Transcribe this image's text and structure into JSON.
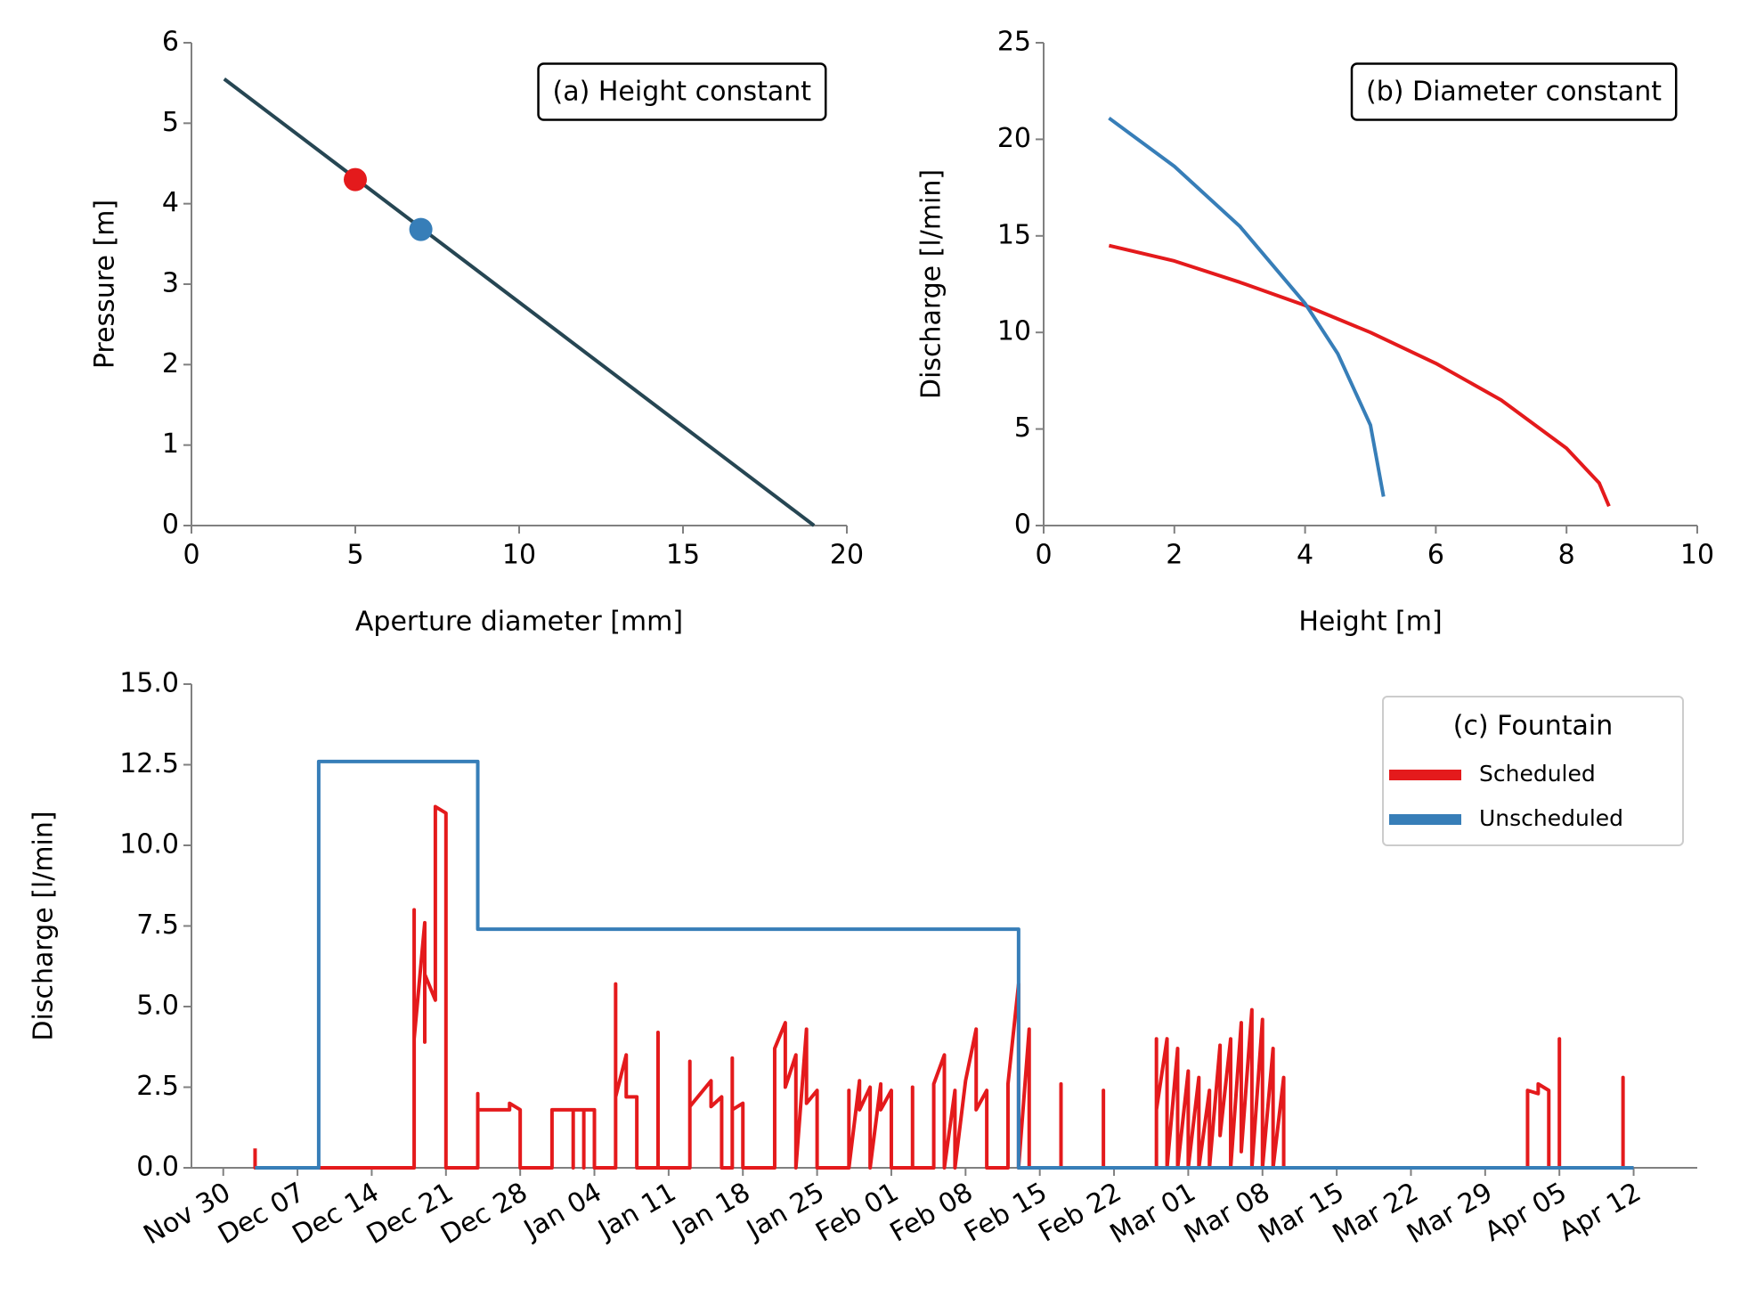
{
  "chart_data": [
    {
      "type": "line",
      "annotation": "(a) Height constant",
      "annotation_loc": "upper right",
      "xlabel": "Aperture diameter [mm]",
      "ylabel": "Pressure [m]",
      "xlim": [
        0,
        20
      ],
      "xticks": [
        0,
        5,
        10,
        15,
        20
      ],
      "ylim": [
        0,
        6
      ],
      "yticks": [
        0,
        1,
        2,
        3,
        4,
        5,
        6
      ],
      "series": [
        {
          "color": "#264653",
          "x": [
            1,
            19
          ],
          "values": [
            5.55,
            0
          ]
        },
        {
          "color": "#e41a1c",
          "marker": true,
          "x": [
            5
          ],
          "values": [
            4.3
          ]
        },
        {
          "color": "#377eb8",
          "marker": true,
          "x": [
            7
          ],
          "values": [
            3.68
          ]
        }
      ]
    },
    {
      "type": "line",
      "annotation": "(b) Diameter constant",
      "annotation_loc": "upper right",
      "xlabel": "Height [m]",
      "ylabel": "Discharge [l/min]",
      "xlim": [
        0,
        10
      ],
      "xticks": [
        0,
        2,
        4,
        6,
        8,
        10
      ],
      "ylim": [
        0,
        25
      ],
      "yticks": [
        0,
        5,
        10,
        15,
        20,
        25
      ],
      "series": [
        {
          "color": "#e41a1c",
          "x": [
            1,
            2,
            3,
            4,
            5,
            6,
            7,
            8,
            8.5,
            8.65
          ],
          "values": [
            14.5,
            13.7,
            12.6,
            11.4,
            10.0,
            8.4,
            6.5,
            4.0,
            2.2,
            1.0
          ]
        },
        {
          "color": "#377eb8",
          "x": [
            1,
            2,
            3,
            4,
            4.5,
            5,
            5.2
          ],
          "values": [
            21.1,
            18.6,
            15.5,
            11.5,
            8.9,
            5.2,
            1.5
          ]
        }
      ]
    },
    {
      "type": "line",
      "ylabel": "Discharge [l/min]",
      "xlim": [
        "Nov 27",
        "Apr 18"
      ],
      "xticks": [
        "Nov 30",
        "Dec 07",
        "Dec 14",
        "Dec 21",
        "Dec 28",
        "Jan 04",
        "Jan 11",
        "Jan 18",
        "Jan 25",
        "Feb 01",
        "Feb 08",
        "Feb 15",
        "Feb 22",
        "Mar 01",
        "Mar 08",
        "Mar 15",
        "Mar 22",
        "Mar 29",
        "Apr 05",
        "Apr 12"
      ],
      "xtick_rotation": 30,
      "ylim": [
        0,
        15
      ],
      "yticks": [
        {
          "value": 0,
          "label": "0.0"
        },
        2.5,
        {
          "value": 5,
          "label": "5.0"
        },
        7.5,
        {
          "value": 10,
          "label": "10.0"
        },
        12.5,
        {
          "value": 15,
          "label": "15.0"
        }
      ],
      "legend": {
        "title": "(c) Fountain",
        "loc": "upper right"
      },
      "series": [
        {
          "name": "Scheduled",
          "color": "#e41a1c",
          "x": [
            "Dec 03",
            "Dec 03",
            "Dec 18",
            "Dec 18",
            "Dec 18",
            "Dec 19",
            "Dec 19",
            "Dec 19",
            "Dec 20",
            "Dec 20",
            "Dec 20",
            "Dec 21",
            "Dec 21",
            "Dec 24",
            "Dec 24",
            "Dec 24",
            "Dec 27",
            "Dec 27",
            "Dec 28",
            "Dec 28",
            "Dec 31",
            "Dec 31",
            "Jan 02",
            "Jan 02",
            "Jan 02",
            "Jan 03",
            "Jan 03",
            "Jan 03",
            "Jan 04",
            "Jan 04",
            "Jan 06",
            "Jan 06",
            "Jan 06",
            "Jan 07",
            "Jan 07",
            "Jan 08",
            "Jan 08",
            "Jan 10",
            "Jan 10",
            "Jan 10",
            "Jan 13",
            "Jan 13",
            "Jan 13",
            "Jan 15",
            "Jan 15",
            "Jan 16",
            "Jan 16",
            "Jan 17",
            "Jan 17",
            "Jan 17",
            "Jan 18",
            "Jan 18",
            "Jan 21",
            "Jan 21",
            "Jan 22",
            "Jan 22",
            "Jan 23",
            "Jan 23",
            "Jan 24",
            "Jan 24",
            "Jan 25",
            "Jan 25",
            "Jan 28",
            "Jan 28",
            "Jan 28",
            "Jan 29",
            "Jan 29",
            "Jan 30",
            "Jan 30",
            "Jan 31",
            "Jan 31",
            "Feb 01",
            "Feb 01",
            "Feb 03",
            "Feb 03",
            "Feb 03",
            "Feb 05",
            "Feb 05",
            "Feb 06",
            "Feb 06",
            "Feb 07",
            "Feb 07",
            "Feb 08",
            "Feb 09",
            "Feb 09",
            "Feb 10",
            "Feb 10",
            "Feb 12",
            "Feb 12",
            "Feb 13",
            "Feb 13",
            "Feb 14",
            "Feb 14",
            "Feb 17",
            "Feb 17",
            "Feb 17",
            "Feb 21",
            "Feb 21",
            "Feb 21",
            "Feb 26",
            "Feb 26",
            "Feb 26",
            "Feb 27",
            "Feb 27",
            "Feb 28",
            "Feb 28",
            "Mar 01",
            "Mar 01",
            "Mar 02",
            "Mar 02",
            "Mar 03",
            "Mar 03",
            "Mar 04",
            "Mar 04",
            "Mar 05",
            "Mar 05",
            "Mar 06",
            "Mar 06",
            "Mar 07",
            "Mar 07",
            "Mar 08",
            "Mar 08",
            "Mar 09",
            "Mar 09",
            "Mar 10",
            "Mar 10",
            "Apr 02",
            "Apr 02",
            "Apr 03",
            "Apr 03",
            "Apr 04",
            "Apr 04",
            "Apr 05",
            "Apr 05",
            "Apr 05",
            "Apr 11",
            "Apr 11",
            "Apr 11",
            "Apr 12"
          ],
          "values": [
            0.6,
            0,
            0,
            8.0,
            4.0,
            7.6,
            3.9,
            6.0,
            5.2,
            8.8,
            11.2,
            11.0,
            0,
            0,
            2.3,
            1.8,
            1.8,
            2.0,
            1.8,
            0,
            0,
            1.8,
            1.8,
            0,
            1.8,
            1.8,
            0,
            1.8,
            1.8,
            0,
            0,
            5.7,
            2.2,
            3.5,
            2.2,
            2.2,
            0,
            0,
            4.2,
            0,
            0,
            3.3,
            1.9,
            2.7,
            1.9,
            2.2,
            0,
            0,
            3.4,
            1.8,
            2.0,
            0,
            0,
            3.7,
            4.5,
            2.5,
            3.5,
            0,
            4.3,
            2.0,
            2.4,
            0,
            0,
            2.4,
            0,
            2.7,
            1.8,
            2.5,
            0,
            2.6,
            1.8,
            2.4,
            0,
            0,
            2.5,
            0,
            0,
            2.6,
            3.5,
            0,
            2.4,
            0,
            2.7,
            4.3,
            1.8,
            2.4,
            0,
            0,
            2.6,
            5.7,
            0,
            4.3,
            0,
            0,
            2.6,
            0,
            0,
            2.4,
            0,
            0,
            4.0,
            1.8,
            4.0,
            0,
            3.7,
            0,
            3.0,
            0,
            2.8,
            0,
            2.4,
            0,
            3.8,
            1.0,
            4.0,
            0,
            4.5,
            0.5,
            4.9,
            0,
            4.6,
            0,
            3.7,
            0,
            2.8,
            0,
            0,
            2.4,
            2.3,
            2.6,
            2.4,
            0,
            0,
            4.0,
            0,
            0,
            2.8,
            0,
            0
          ]
        },
        {
          "name": "Unscheduled",
          "color": "#377eb8",
          "x": [
            "Dec 03",
            "Dec 09",
            "Dec 09",
            "Dec 24",
            "Dec 24",
            "Feb 13",
            "Feb 13",
            "Apr 12"
          ],
          "values": [
            0,
            0,
            12.6,
            12.6,
            7.4,
            7.4,
            0,
            0
          ]
        }
      ]
    }
  ]
}
